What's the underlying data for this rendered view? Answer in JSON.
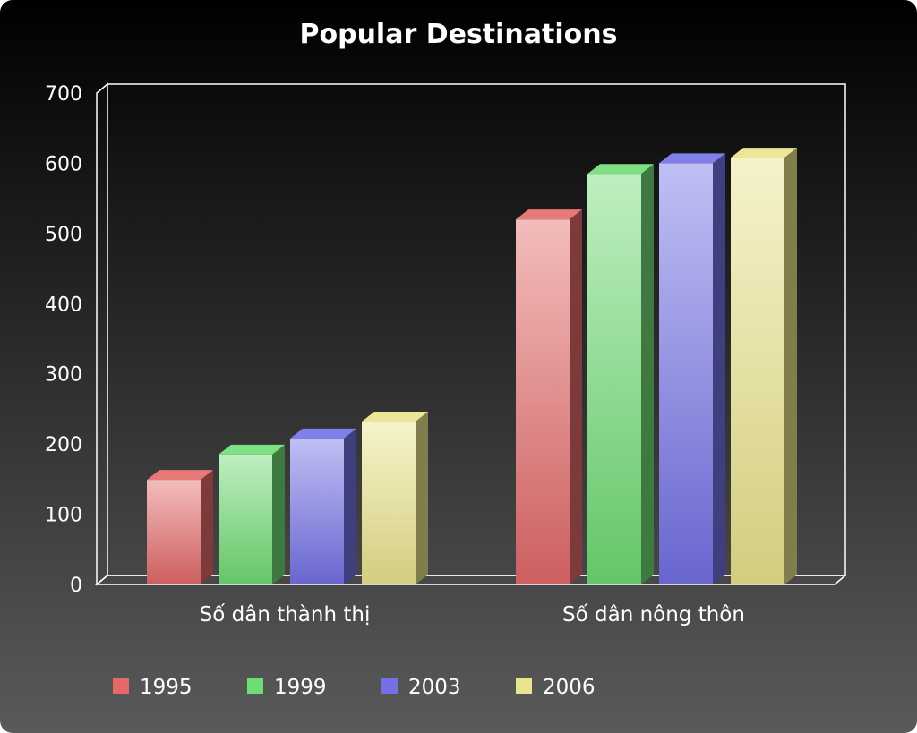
{
  "chart_data": {
    "type": "bar",
    "title": "Popular Destinations",
    "categories": [
      "Số dân thành thị",
      "Số dân nông thôn"
    ],
    "series": [
      {
        "name": "1995",
        "values": [
          149,
          520
        ],
        "color": "#e46a6a"
      },
      {
        "name": "1999",
        "values": [
          185,
          585
        ],
        "color": "#6fdc74"
      },
      {
        "name": "2003",
        "values": [
          208,
          600
        ],
        "color": "#7371e6"
      },
      {
        "name": "2006",
        "values": [
          232,
          608
        ],
        "color": "#eae48c"
      }
    ],
    "ylim": [
      0,
      700
    ],
    "yticks": [
      0,
      100,
      200,
      300,
      400,
      500,
      600,
      700
    ],
    "grid": false,
    "legend_position": "bottom",
    "background_colors": [
      "#000000",
      "#5a5a5a"
    ]
  }
}
